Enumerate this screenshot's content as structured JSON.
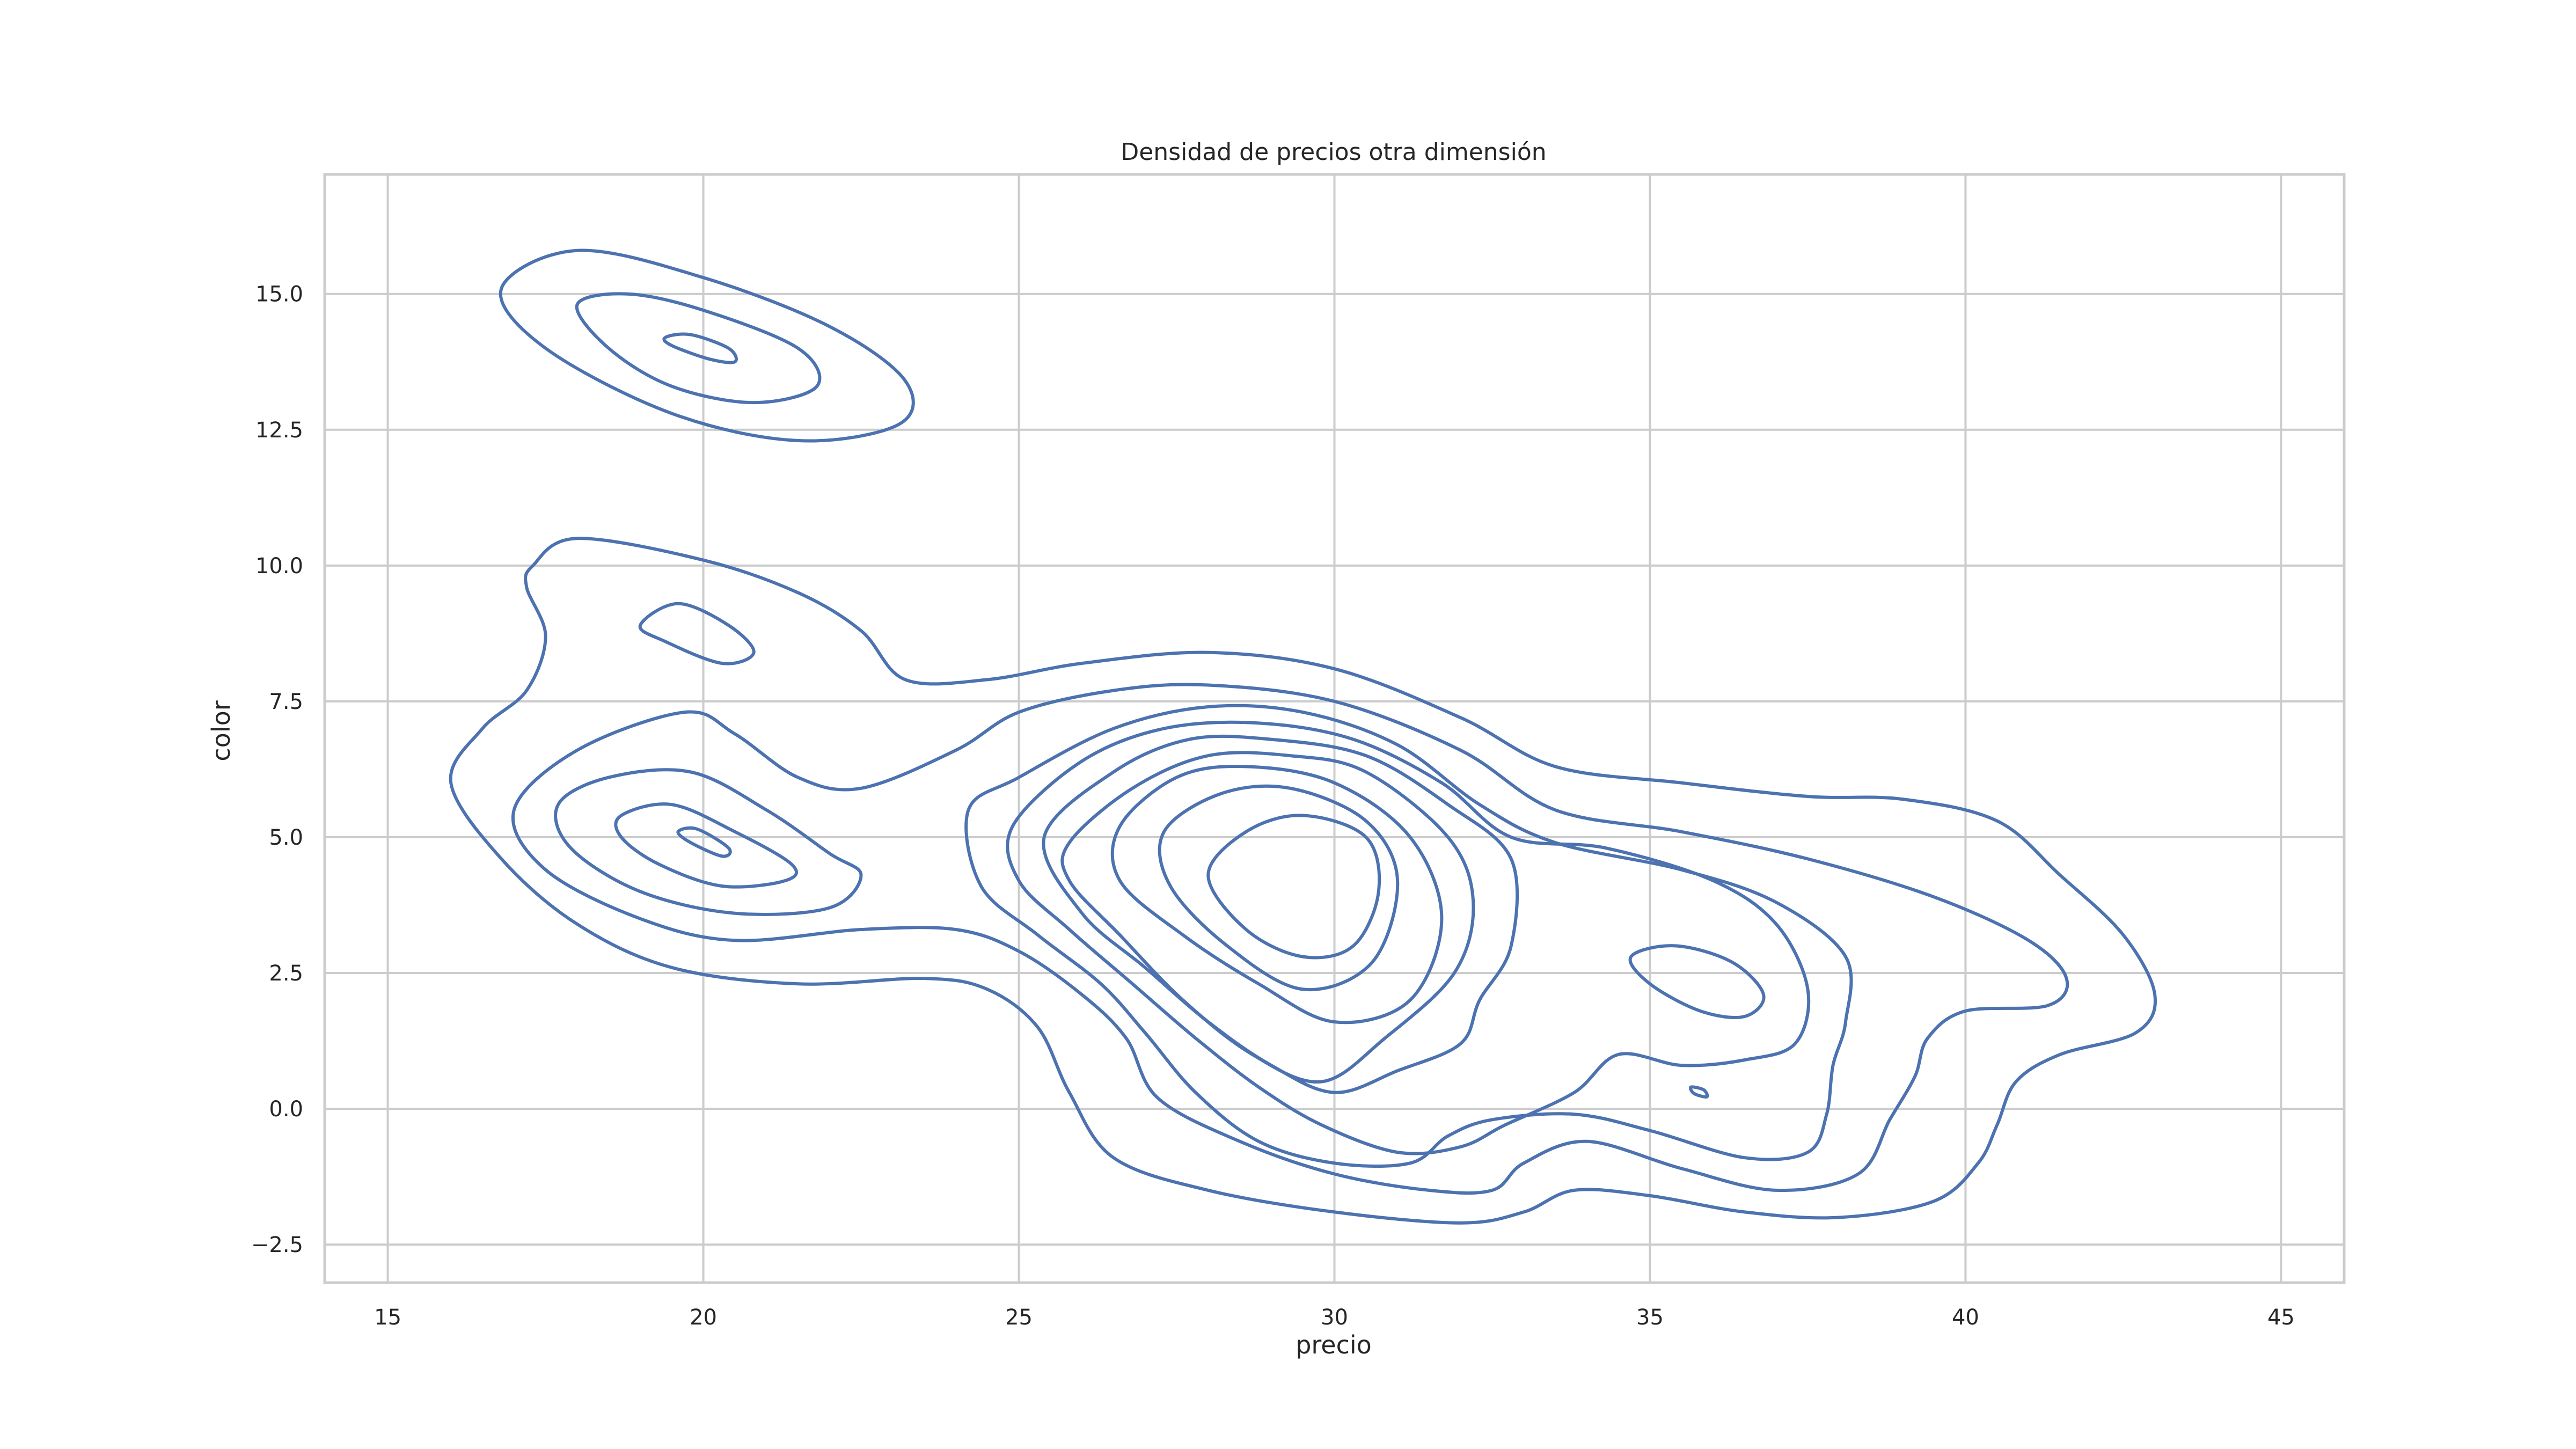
{
  "chart_data": {
    "type": "kde_contour",
    "title": "Densidad de precios otra dimensión",
    "xlabel": "precio",
    "ylabel": "color",
    "xlim": [
      14,
      46
    ],
    "ylim": [
      -3.2,
      17.2
    ],
    "xticks": [
      15,
      20,
      25,
      30,
      35,
      40,
      45
    ],
    "xtick_labels": [
      "15",
      "20",
      "25",
      "30",
      "35",
      "40",
      "45"
    ],
    "yticks": [
      -2.5,
      0.0,
      2.5,
      5.0,
      7.5,
      10.0,
      12.5,
      15.0
    ],
    "ytick_labels": [
      "−2.5",
      "0.0",
      "2.5",
      "5.0",
      "7.5",
      "10.0",
      "12.5",
      "15.0"
    ],
    "grid": true,
    "line_color": "#4c72b0",
    "contours": [
      {
        "level": 1,
        "points": [
          [
            16.8,
            15.1
          ],
          [
            18.0,
            15.8
          ],
          [
            20.0,
            15.3
          ],
          [
            22.0,
            14.4
          ],
          [
            23.2,
            13.4
          ],
          [
            23.1,
            12.6
          ],
          [
            21.5,
            12.3
          ],
          [
            19.5,
            12.8
          ],
          [
            17.5,
            14.0
          ],
          [
            16.8,
            15.1
          ]
        ]
      },
      {
        "level": 2,
        "points": [
          [
            18.0,
            14.8
          ],
          [
            18.8,
            15.0
          ],
          [
            20.0,
            14.7
          ],
          [
            21.5,
            14.0
          ],
          [
            21.8,
            13.3
          ],
          [
            20.8,
            13.0
          ],
          [
            19.5,
            13.3
          ],
          [
            18.5,
            14.0
          ],
          [
            18.0,
            14.8
          ]
        ]
      },
      {
        "level": 3,
        "points": [
          [
            19.4,
            14.2
          ],
          [
            19.8,
            14.25
          ],
          [
            20.4,
            14.0
          ],
          [
            20.5,
            13.75
          ],
          [
            20.1,
            13.8
          ],
          [
            19.5,
            14.05
          ],
          [
            19.4,
            14.2
          ]
        ]
      },
      {
        "level": 1,
        "points": [
          [
            17.3,
            10.0
          ],
          [
            18.0,
            10.5
          ],
          [
            20.0,
            10.1
          ],
          [
            21.5,
            9.5
          ],
          [
            22.5,
            8.8
          ],
          [
            23.2,
            7.9
          ],
          [
            24.5,
            7.9
          ],
          [
            26.0,
            8.2
          ],
          [
            28.0,
            8.4
          ],
          [
            30.0,
            8.1
          ],
          [
            32.0,
            7.2
          ],
          [
            33.5,
            6.3
          ],
          [
            35.5,
            6.0
          ],
          [
            37.5,
            5.75
          ],
          [
            39.0,
            5.7
          ],
          [
            40.5,
            5.3
          ],
          [
            41.5,
            4.3
          ],
          [
            42.5,
            3.2
          ],
          [
            43.0,
            2.1
          ],
          [
            42.7,
            1.4
          ],
          [
            41.5,
            1.0
          ],
          [
            40.8,
            0.5
          ],
          [
            40.5,
            -0.3
          ],
          [
            40.2,
            -1.0
          ],
          [
            39.5,
            -1.7
          ],
          [
            38.0,
            -2.0
          ],
          [
            36.5,
            -1.9
          ],
          [
            35.0,
            -1.6
          ],
          [
            33.8,
            -1.5
          ],
          [
            33.0,
            -1.9
          ],
          [
            32.0,
            -2.1
          ],
          [
            30.0,
            -1.9
          ],
          [
            28.0,
            -1.5
          ],
          [
            26.5,
            -0.9
          ],
          [
            25.8,
            0.3
          ],
          [
            25.3,
            1.5
          ],
          [
            24.5,
            2.2
          ],
          [
            23.5,
            2.4
          ],
          [
            21.5,
            2.3
          ],
          [
            19.5,
            2.6
          ],
          [
            18.0,
            3.4
          ],
          [
            16.8,
            4.6
          ],
          [
            16.0,
            6.0
          ],
          [
            16.5,
            7.0
          ],
          [
            17.2,
            7.7
          ],
          [
            17.5,
            8.7
          ],
          [
            17.2,
            9.6
          ],
          [
            17.3,
            10.0
          ]
        ]
      },
      {
        "level": 2,
        "points": [
          [
            17.0,
            5.5
          ],
          [
            18.0,
            6.6
          ],
          [
            19.7,
            7.3
          ],
          [
            20.5,
            6.9
          ],
          [
            21.5,
            6.1
          ],
          [
            22.5,
            5.9
          ],
          [
            24.0,
            6.6
          ],
          [
            25.0,
            7.3
          ],
          [
            26.5,
            7.7
          ],
          [
            28.0,
            7.8
          ],
          [
            30.0,
            7.5
          ],
          [
            32.0,
            6.6
          ],
          [
            33.5,
            5.5
          ],
          [
            35.5,
            5.1
          ],
          [
            37.5,
            4.6
          ],
          [
            39.5,
            3.9
          ],
          [
            41.0,
            3.1
          ],
          [
            41.6,
            2.4
          ],
          [
            41.3,
            1.9
          ],
          [
            40.0,
            1.8
          ],
          [
            39.4,
            1.3
          ],
          [
            39.2,
            0.6
          ],
          [
            38.8,
            -0.2
          ],
          [
            38.3,
            -1.2
          ],
          [
            37.0,
            -1.5
          ],
          [
            35.5,
            -1.1
          ],
          [
            34.0,
            -0.6
          ],
          [
            33.0,
            -1.0
          ],
          [
            32.5,
            -1.5
          ],
          [
            31.5,
            -1.5
          ],
          [
            30.0,
            -1.2
          ],
          [
            28.5,
            -0.6
          ],
          [
            27.2,
            0.2
          ],
          [
            26.7,
            1.3
          ],
          [
            26.0,
            2.1
          ],
          [
            25.0,
            2.9
          ],
          [
            24.0,
            3.3
          ],
          [
            22.5,
            3.3
          ],
          [
            20.5,
            3.1
          ],
          [
            19.0,
            3.5
          ],
          [
            17.5,
            4.4
          ],
          [
            17.0,
            5.5
          ]
        ]
      },
      {
        "level": 3,
        "points": [
          [
            17.7,
            5.6
          ],
          [
            18.5,
            6.1
          ],
          [
            19.8,
            6.2
          ],
          [
            21.0,
            5.5
          ],
          [
            22.0,
            4.7
          ],
          [
            22.5,
            4.3
          ],
          [
            22.0,
            3.7
          ],
          [
            20.5,
            3.6
          ],
          [
            19.0,
            4.0
          ],
          [
            17.9,
            4.8
          ],
          [
            17.7,
            5.6
          ]
        ]
      },
      {
        "level": 4,
        "points": [
          [
            18.7,
            5.4
          ],
          [
            19.5,
            5.6
          ],
          [
            20.5,
            5.1
          ],
          [
            21.4,
            4.5
          ],
          [
            21.3,
            4.2
          ],
          [
            20.3,
            4.1
          ],
          [
            19.3,
            4.5
          ],
          [
            18.7,
            5.0
          ],
          [
            18.7,
            5.4
          ]
        ]
      },
      {
        "level": 5,
        "points": [
          [
            19.6,
            5.1
          ],
          [
            19.9,
            5.15
          ],
          [
            20.4,
            4.8
          ],
          [
            20.3,
            4.65
          ],
          [
            19.8,
            4.9
          ],
          [
            19.6,
            5.1
          ]
        ]
      },
      {
        "level": 2,
        "points": [
          [
            19.0,
            8.9
          ],
          [
            19.6,
            9.3
          ],
          [
            20.4,
            8.9
          ],
          [
            20.8,
            8.4
          ],
          [
            20.3,
            8.2
          ],
          [
            19.4,
            8.6
          ],
          [
            19.0,
            8.9
          ]
        ]
      },
      {
        "level": 3,
        "points": [
          [
            24.2,
            5.5
          ],
          [
            25.0,
            6.1
          ],
          [
            26.5,
            7.0
          ],
          [
            28.0,
            7.4
          ],
          [
            29.5,
            7.3
          ],
          [
            31.0,
            6.7
          ],
          [
            32.3,
            5.6
          ],
          [
            33.5,
            4.9
          ],
          [
            35.5,
            4.4
          ],
          [
            37.0,
            3.8
          ],
          [
            38.1,
            2.8
          ],
          [
            38.1,
            1.6
          ],
          [
            37.9,
            0.8
          ],
          [
            37.8,
            -0.1
          ],
          [
            37.5,
            -0.8
          ],
          [
            36.5,
            -0.9
          ],
          [
            35.0,
            -0.4
          ],
          [
            33.8,
            -0.1
          ],
          [
            32.5,
            -0.2
          ],
          [
            31.8,
            -0.5
          ],
          [
            31.2,
            -1.0
          ],
          [
            30.0,
            -1.0
          ],
          [
            28.8,
            -0.6
          ],
          [
            27.8,
            0.3
          ],
          [
            27.0,
            1.4
          ],
          [
            26.3,
            2.3
          ],
          [
            25.3,
            3.2
          ],
          [
            24.4,
            4.1
          ],
          [
            24.2,
            5.5
          ]
        ]
      },
      {
        "level": 4,
        "points": [
          [
            24.9,
            5.2
          ],
          [
            26.0,
            6.4
          ],
          [
            27.3,
            7.0
          ],
          [
            28.8,
            7.1
          ],
          [
            30.3,
            6.8
          ],
          [
            31.7,
            6.0
          ],
          [
            32.8,
            5.0
          ],
          [
            34.3,
            4.8
          ],
          [
            36.0,
            4.2
          ],
          [
            37.0,
            3.4
          ],
          [
            37.5,
            2.2
          ],
          [
            37.3,
            1.2
          ],
          [
            36.5,
            0.9
          ],
          [
            35.5,
            0.8
          ],
          [
            34.5,
            1.0
          ],
          [
            33.8,
            0.3
          ],
          [
            32.7,
            -0.3
          ],
          [
            32.0,
            -0.7
          ],
          [
            31.0,
            -0.8
          ],
          [
            29.8,
            -0.3
          ],
          [
            28.8,
            0.4
          ],
          [
            27.8,
            1.3
          ],
          [
            26.8,
            2.3
          ],
          [
            25.8,
            3.3
          ],
          [
            25.0,
            4.2
          ],
          [
            24.9,
            5.2
          ]
        ]
      },
      {
        "level": 5,
        "points": [
          [
            25.4,
            5.0
          ],
          [
            26.5,
            6.2
          ],
          [
            27.7,
            6.8
          ],
          [
            29.0,
            6.8
          ],
          [
            30.5,
            6.5
          ],
          [
            31.8,
            5.6
          ],
          [
            32.8,
            4.6
          ],
          [
            32.8,
            3.0
          ],
          [
            32.3,
            2.0
          ],
          [
            32.0,
            1.2
          ],
          [
            31.0,
            0.7
          ],
          [
            30.0,
            0.3
          ],
          [
            29.0,
            0.8
          ],
          [
            28.0,
            1.6
          ],
          [
            27.0,
            2.6
          ],
          [
            26.0,
            3.6
          ],
          [
            25.4,
            5.0
          ]
        ]
      },
      {
        "level": 6,
        "points": [
          [
            25.8,
            4.9
          ],
          [
            26.8,
            5.9
          ],
          [
            28.0,
            6.5
          ],
          [
            29.3,
            6.5
          ],
          [
            30.5,
            6.2
          ],
          [
            31.8,
            5.0
          ],
          [
            32.2,
            3.8
          ],
          [
            31.9,
            2.5
          ],
          [
            30.8,
            1.3
          ],
          [
            29.8,
            0.5
          ],
          [
            28.7,
            1.0
          ],
          [
            27.6,
            2.0
          ],
          [
            26.6,
            3.2
          ],
          [
            25.8,
            4.2
          ],
          [
            25.8,
            4.9
          ]
        ]
      },
      {
        "level": 7,
        "points": [
          [
            26.6,
            5.2
          ],
          [
            27.5,
            6.1
          ],
          [
            28.6,
            6.3
          ],
          [
            30.0,
            6.0
          ],
          [
            31.2,
            5.0
          ],
          [
            31.7,
            3.5
          ],
          [
            31.2,
            2.0
          ],
          [
            30.0,
            1.6
          ],
          [
            28.8,
            2.3
          ],
          [
            27.6,
            3.2
          ],
          [
            26.6,
            4.2
          ],
          [
            26.6,
            5.2
          ]
        ]
      },
      {
        "level": 8,
        "points": [
          [
            27.3,
            5.1
          ],
          [
            28.2,
            5.8
          ],
          [
            29.3,
            5.9
          ],
          [
            30.5,
            5.3
          ],
          [
            31.0,
            4.2
          ],
          [
            30.6,
            2.7
          ],
          [
            29.5,
            2.2
          ],
          [
            28.3,
            3.0
          ],
          [
            27.4,
            4.1
          ],
          [
            27.3,
            5.1
          ]
        ]
      },
      {
        "level": 9,
        "points": [
          [
            28.0,
            4.3
          ],
          [
            28.6,
            5.1
          ],
          [
            29.5,
            5.4
          ],
          [
            30.5,
            5.0
          ],
          [
            30.7,
            4.0
          ],
          [
            30.3,
            3.0
          ],
          [
            29.5,
            2.8
          ],
          [
            28.6,
            3.3
          ],
          [
            28.0,
            4.3
          ]
        ]
      },
      {
        "level": 6,
        "points": [
          [
            34.7,
            2.8
          ],
          [
            35.4,
            3.0
          ],
          [
            36.3,
            2.7
          ],
          [
            36.8,
            2.1
          ],
          [
            36.5,
            1.7
          ],
          [
            35.8,
            1.8
          ],
          [
            35.0,
            2.3
          ],
          [
            34.7,
            2.8
          ]
        ]
      },
      {
        "level": 7,
        "points": [
          [
            35.65,
            0.4
          ],
          [
            35.85,
            0.35
          ],
          [
            35.9,
            0.22
          ],
          [
            35.7,
            0.28
          ],
          [
            35.65,
            0.4
          ]
        ]
      }
    ]
  }
}
